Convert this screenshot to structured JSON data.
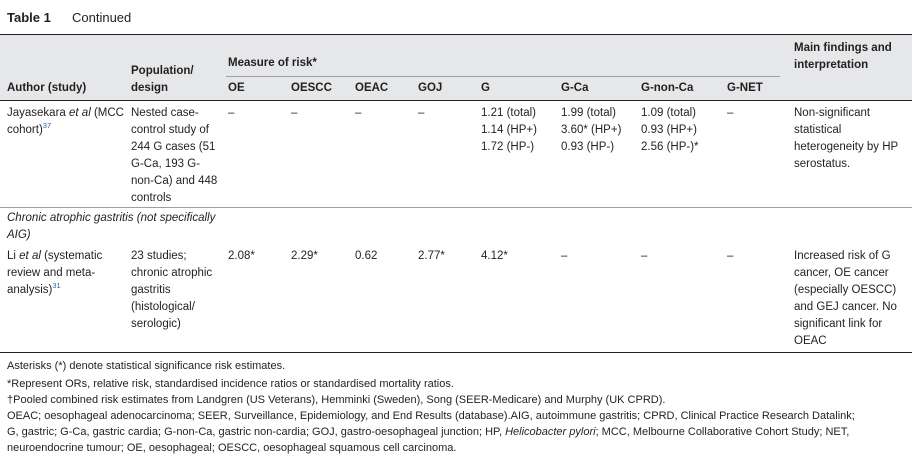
{
  "table": {
    "number": "Table 1",
    "continued": "Continued",
    "headers": {
      "author": "Author (study)",
      "population": "Population/ design",
      "measure_of_risk": "Measure of risk*",
      "cols": [
        "OE",
        "OESCC",
        "OEAC",
        "GOJ",
        "G",
        "G-Ca",
        "G-non-Ca",
        "G-NET"
      ],
      "findings": "Main findings and interpretation"
    },
    "rows": [
      {
        "author_pre": "Jayasekara ",
        "author_it": "et al",
        "author_post": " (MCC cohort)",
        "ref": "37",
        "population": "Nested case-control study of 244 G cases (51 G-Ca, 193 G-non-Ca) and 448 controls",
        "oe": "–",
        "oescc": "–",
        "oeac": "–",
        "goj": "–",
        "g_lines": [
          "1.21 (total)",
          "1.14 (HP+)",
          "1.72 (HP-)"
        ],
        "gca_lines": [
          "1.99 (total)",
          "3.60* (HP+)",
          "0.93 (HP-)"
        ],
        "gnonca_lines": [
          "1.09 (total)",
          "0.93 (HP+)",
          "2.56 (HP-)*"
        ],
        "gnet": "–",
        "findings": "Non-significant statistical heterogeneity by HP serostatus."
      },
      {
        "author_pre": "Li ",
        "author_it": "et al",
        "author_post": " (systematic review and meta-analysis)",
        "ref": "31",
        "population": "23 studies; chronic atrophic gastritis (histological/ serologic)",
        "oe": "2.08*",
        "oescc": "2.29*",
        "oeac": "0.62",
        "goj": "2.77*",
        "g": "4.12*",
        "gca": "–",
        "gnonca": "–",
        "gnet": "–",
        "findings": "Increased risk of G cancer, OE cancer (especially OESCC) and GEJ cancer. No significant link for OEAC"
      }
    ],
    "section": "Chronic atrophic gastritis (not specifically AIG)",
    "footnotes": {
      "asterisks": "Asterisks (*) denote statistical significance risk estimates.",
      "star": "*Represent ORs, relative risk, standardised incidence ratios or standardised mortality ratios.",
      "dagger": "†Pooled combined risk estimates from Landgren (US Veterans), Hemminki (Sweden), Song (SEER-Medicare) and Murphy (UK CPRD).",
      "abbr1": "OEAC; oesophageal adenocarcinoma; SEER, Surveillance, Epidemiology, and End Results (database).AIG, autoimmune gastritis; CPRD, Clinical Practice Research Datalink;",
      "abbr2_pre": "G, gastric; G-Ca, gastric cardia; G-non-Ca, gastric non-cardia; GOJ, gastro-oesophageal junction; HP, ",
      "abbr2_it": "Helicobacter pylori",
      "abbr2_post": "; MCC, Melbourne Collaborative Cohort Study; NET,",
      "abbr3": "neuroendocrine tumour; OE, oesophageal; OESCC, oesophageal squamous cell carcinoma."
    }
  }
}
